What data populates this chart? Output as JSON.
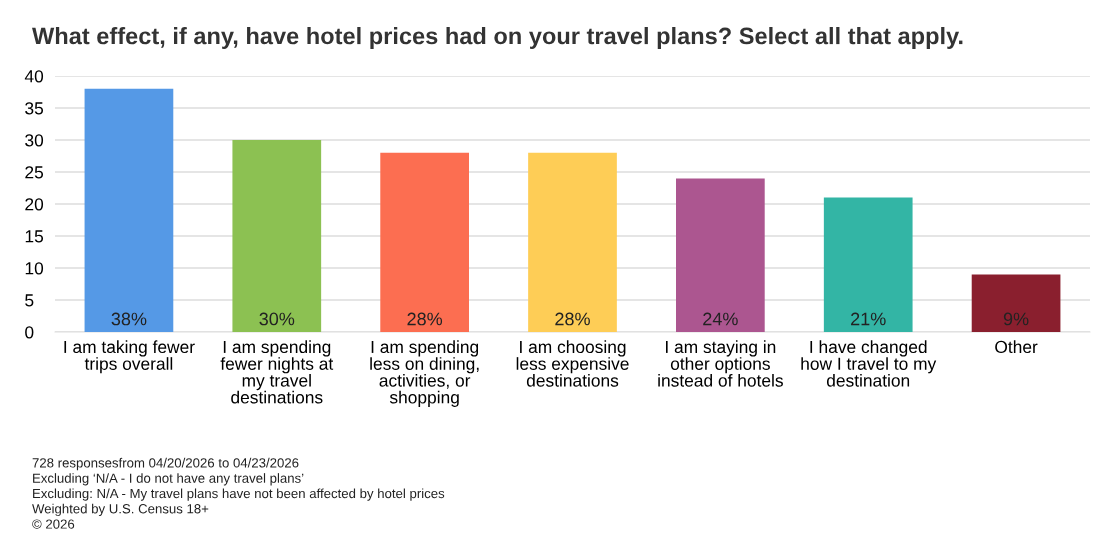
{
  "chart_data": {
    "type": "bar",
    "title": "What effect, if any, have hotel prices had on your travel plans? Select all that apply.",
    "categories": [
      "I am taking fewer\ntrips overall",
      "I am spending\nfewer nights at\nmy travel\ndestinations",
      "I am spending\nless on dining,\nactivities, or\nshopping",
      "I am choosing\nless expensive\ndestinations",
      "I am staying in\nother options\ninstead of hotels",
      "I have changed\nhow I travel to my\ndestination",
      "Other"
    ],
    "values": [
      38,
      30,
      28,
      28,
      24,
      21,
      9
    ],
    "colors": [
      "#5599e6",
      "#8cc152",
      "#fc6e51",
      "#fecd56",
      "#ac5690",
      "#33b5a5",
      "#8a1f2e"
    ],
    "value_labels": [
      "38%",
      "30%",
      "28%",
      "28%",
      "24%",
      "21%",
      "9%"
    ],
    "ylim": [
      0,
      40
    ],
    "yticks": [
      0,
      5,
      10,
      15,
      20,
      25,
      30,
      35,
      40
    ],
    "grid": "y",
    "legend": false,
    "annotations": [
      "728 responsesfrom 04/20/2026 to 04/23/2026",
      "Excluding ‘N/A - I do not have any travel plans’",
      "Excluding: N/A - My travel plans have not been affected by hotel prices",
      "Weighted by U.S. Census 18+",
      "© 2026"
    ]
  }
}
